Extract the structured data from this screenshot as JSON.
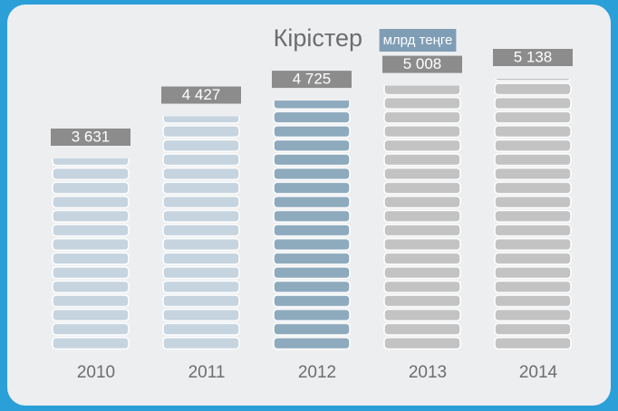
{
  "chart_data": {
    "type": "bar",
    "title": "Кірістер",
    "subtitle": "млрд теңге",
    "categories": [
      "2010",
      "2011",
      "2012",
      "2013",
      "2014"
    ],
    "values": [
      3631,
      4427,
      4725,
      5008,
      5138
    ],
    "value_labels": [
      "3 631",
      "4 427",
      "4 725",
      "5 008",
      "5 138"
    ],
    "colors": [
      "#c6d4e0",
      "#c6d4e0",
      "#8eaabd",
      "#c3c3c3",
      "#c3c3c3"
    ]
  }
}
